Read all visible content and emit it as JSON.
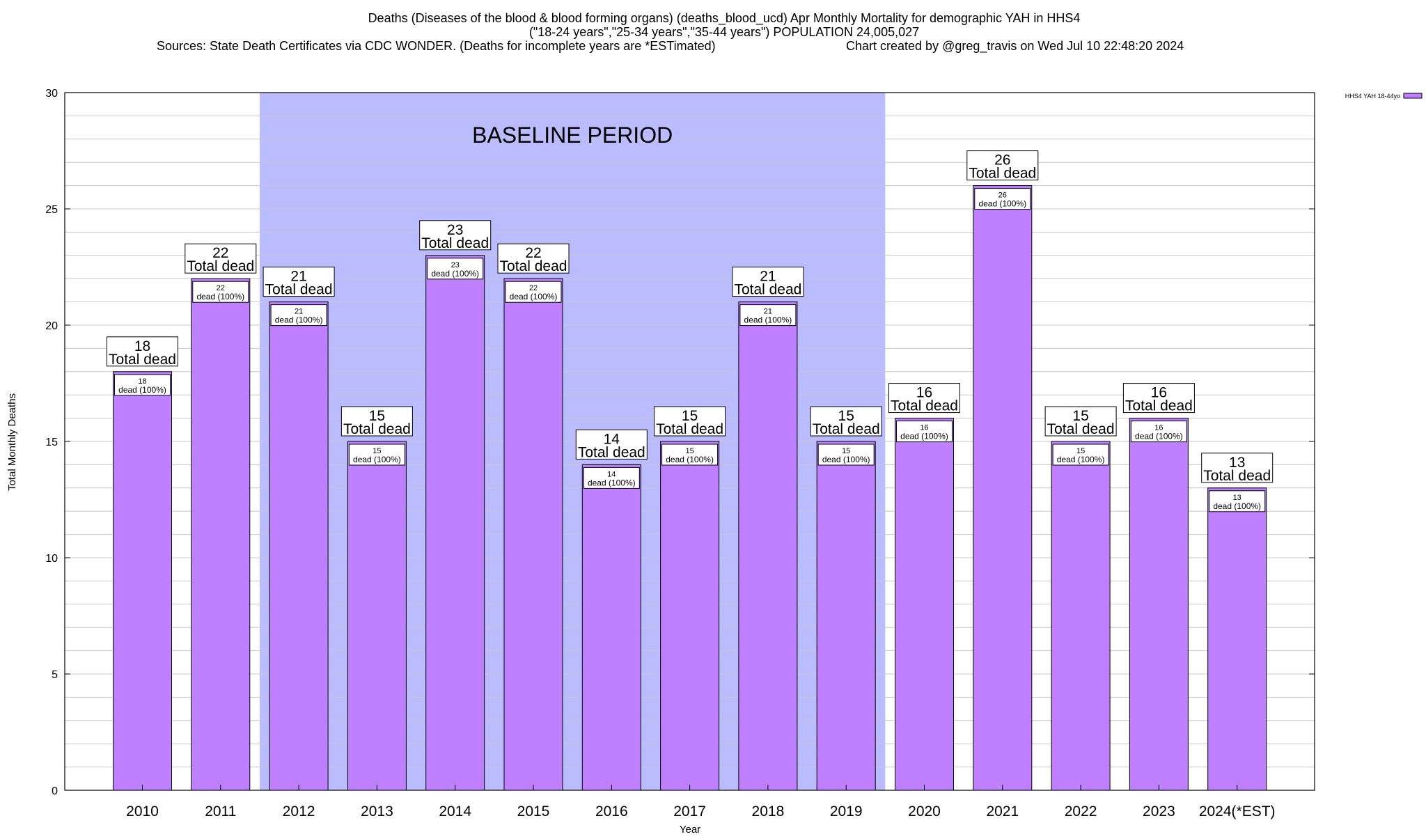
{
  "chart_data": {
    "type": "bar",
    "title_lines": [
      "Deaths (Diseases of the blood & blood forming organs) (deaths_blood_ucd) Apr Monthly Mortality for demographic YAH in HHS4",
      "(\"18-24 years\",\"25-34 years\",\"35-44 years\") POPULATION 24,005,027",
      "Sources: State Death Certificates via CDC WONDER. (Deaths for incomplete years are *ESTimated)",
      "Chart created by @greg_travis on Wed Jul 10 22:48:20 2024"
    ],
    "xlabel": "Year",
    "ylabel": "Total Monthly Deaths",
    "ylim": [
      0,
      30
    ],
    "yticks": [
      0,
      5,
      10,
      15,
      20,
      25,
      30
    ],
    "y_minor_step": 1,
    "grid": true,
    "legend_position": "top-right",
    "bar_color": "#bf80ff",
    "baseline_color": "#bbbbff",
    "categories": [
      "2010",
      "2011",
      "2012",
      "2013",
      "2014",
      "2015",
      "2016",
      "2017",
      "2018",
      "2019",
      "2020",
      "2021",
      "2022",
      "2023",
      "2024(*EST)"
    ],
    "series": [
      {
        "name": "HHS4 YAH 18-44yo",
        "values": [
          18,
          22,
          21,
          15,
          23,
          22,
          14,
          15,
          21,
          15,
          16,
          26,
          15,
          16,
          13
        ]
      }
    ],
    "total_label_suffix": "Total dead",
    "inner_label_suffix": "dead (100%)",
    "baseline_period": {
      "label": "BASELINE PERIOD",
      "start_category": "2012",
      "end_category": "2019"
    }
  }
}
